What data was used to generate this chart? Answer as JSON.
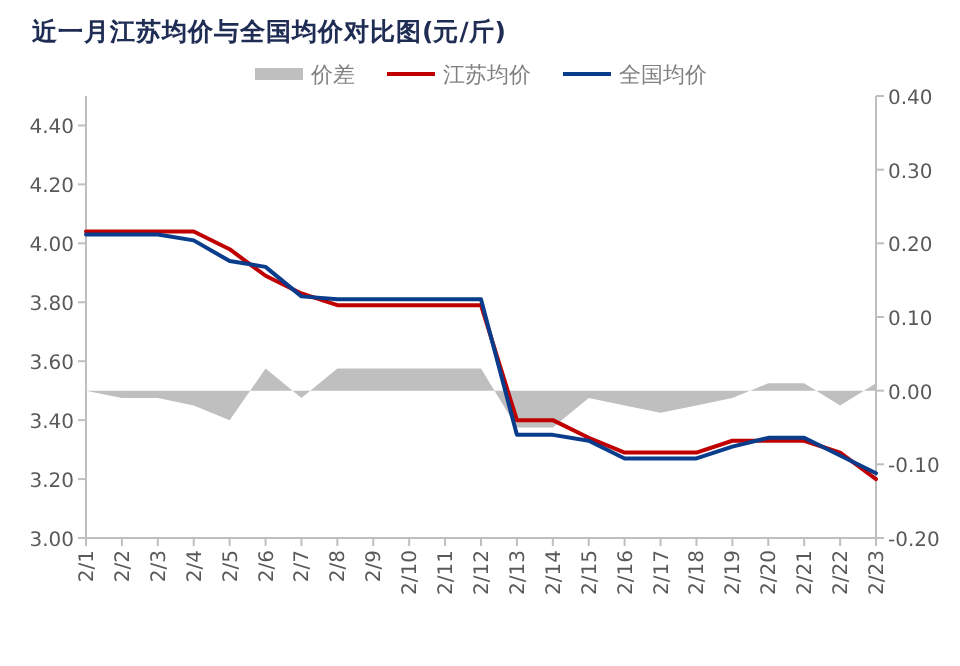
{
  "chart_data": {
    "type": "line",
    "title": "近一月江苏均价与全国均价对比图(元/斤)",
    "categories": [
      "2/1",
      "2/2",
      "2/3",
      "2/4",
      "2/5",
      "2/6",
      "2/7",
      "2/8",
      "2/9",
      "2/10",
      "2/11",
      "2/12",
      "2/13",
      "2/14",
      "2/15",
      "2/16",
      "2/17",
      "2/18",
      "2/19",
      "2/20",
      "2/21",
      "2/22",
      "2/23"
    ],
    "series": [
      {
        "name": "价差",
        "type": "area",
        "axis": "y2",
        "color": "#bfbfbf",
        "values": [
          0,
          -0.01,
          -0.01,
          -0.02,
          -0.04,
          0.03,
          -0.01,
          0.03,
          0.03,
          0.03,
          0.03,
          0.03,
          -0.05,
          -0.05,
          -0.01,
          -0.02,
          -0.03,
          -0.02,
          -0.01,
          0.01,
          0.01,
          -0.02,
          0.01
        ]
      },
      {
        "name": "江苏均价",
        "type": "line",
        "color": "#c00000",
        "values": [
          4.04,
          4.04,
          4.04,
          4.04,
          3.98,
          3.89,
          3.83,
          3.79,
          3.79,
          3.79,
          3.79,
          3.79,
          3.4,
          3.4,
          3.34,
          3.29,
          3.29,
          3.29,
          3.33,
          3.33,
          3.33,
          3.29,
          3.2
        ]
      },
      {
        "name": "全国均价",
        "type": "line",
        "color": "#0a3c8c",
        "values": [
          4.03,
          4.03,
          4.03,
          4.01,
          3.94,
          3.92,
          3.82,
          3.81,
          3.81,
          3.81,
          3.81,
          3.81,
          3.35,
          3.35,
          3.33,
          3.27,
          3.27,
          3.27,
          3.31,
          3.34,
          3.34,
          3.28,
          3.22
        ]
      }
    ],
    "ylim": [
      3.0,
      4.5
    ],
    "yticks": [
      {
        "value": 3.0,
        "label": "3.00"
      },
      {
        "value": 3.2,
        "label": "3.20"
      },
      {
        "value": 3.4,
        "label": "3.40"
      },
      {
        "value": 3.6,
        "label": "3.60"
      },
      {
        "value": 3.8,
        "label": "3.80"
      },
      {
        "value": 4.0,
        "label": "4.00"
      },
      {
        "value": 4.2,
        "label": "4.20"
      },
      {
        "value": 4.4,
        "label": "4.40"
      }
    ],
    "y2lim": [
      -0.2,
      0.4
    ],
    "y2ticks": [
      {
        "value": -0.2,
        "label": "-0.20"
      },
      {
        "value": -0.1,
        "label": "-0.10"
      },
      {
        "value": 0,
        "label": "0.00"
      },
      {
        "value": 0.1,
        "label": "0.10"
      },
      {
        "value": 0.2,
        "label": "0.20"
      },
      {
        "value": 0.3,
        "label": "0.30"
      },
      {
        "value": 0.4,
        "label": "0.40"
      }
    ],
    "legend": "top",
    "grid": false,
    "marker": "none",
    "line_style": "solid"
  }
}
